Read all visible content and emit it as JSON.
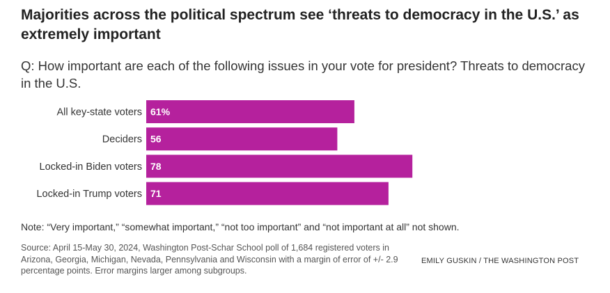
{
  "title": "Majorities across the political spectrum see ‘threats to democracy in the U.S.’ as extremely important",
  "subtitle": "Q: How important are each of the following issues in your vote for president? Threats to democracy in the U.S.",
  "note": "Note: “Very important,” “somewhat important,” “not too important” and “not important at all” not shown.",
  "source": "Source: April 15-May 30, 2024, Washington Post-Schar School poll of 1,684 registered voters in Arizona, Georgia, Michigan, Nevada, Pennsylvania and Wisconsin with a margin of error of +/- 2.9 percentage points. Error margins larger among subgroups.",
  "credit": "EMILY GUSKIN / THE WASHINGTON POST",
  "colors": {
    "bar": "#b5219d",
    "bar_label": "#ffffff"
  },
  "chart_data": {
    "type": "bar",
    "orientation": "horizontal",
    "title": "Majorities across the political spectrum see ‘threats to democracy in the U.S.’ as extremely important",
    "xlabel": "",
    "ylabel": "",
    "xlim": [
      0,
      100
    ],
    "grid": false,
    "categories": [
      "All key-state voters",
      "Deciders",
      "Locked-in Biden voters",
      "Locked-in Trump voters"
    ],
    "values": [
      61,
      56,
      78,
      71
    ],
    "value_labels": [
      "61%",
      "56",
      "78",
      "71"
    ]
  }
}
